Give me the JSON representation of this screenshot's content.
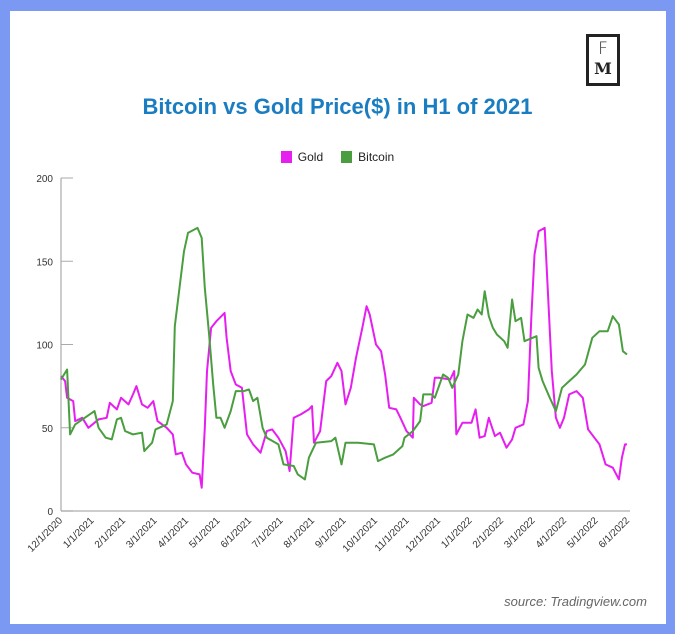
{
  "logo": {
    "text_top": "F",
    "text_bottom": "M"
  },
  "source": "source: Tradingview.com",
  "chart_data": {
    "type": "line",
    "title": "Bitcoin vs Gold Price($) in H1 of 2021",
    "xlabel": "",
    "ylabel": "",
    "ylim": [
      0,
      200
    ],
    "yticks": [
      0,
      50,
      100,
      150,
      200
    ],
    "xticks": [
      "12/1/2020",
      "1/1/2021",
      "2/1/2021",
      "3/1/2021",
      "4/1/2021",
      "5/1/2021",
      "6/1/2021",
      "7/1/2021",
      "8/1/2021",
      "9/1/2021",
      "10/1/2021",
      "11/1/2021",
      "12/1/2021",
      "1/1/2022",
      "2/1/2022",
      "3/1/2022",
      "4/1/2022",
      "5/1/2022",
      "6/1/2022"
    ],
    "xlim": [
      "2020-12-01",
      "2022-06-01"
    ],
    "grid": false,
    "legend_position": "top",
    "series": [
      {
        "name": "Gold",
        "color": "#e61ef0",
        "points": [
          [
            "2020-12-01",
            81
          ],
          [
            "2020-12-05",
            78
          ],
          [
            "2020-12-07",
            68
          ],
          [
            "2020-12-13",
            66
          ],
          [
            "2020-12-15",
            54
          ],
          [
            "2020-12-22",
            56
          ],
          [
            "2020-12-28",
            50
          ],
          [
            "2021-01-07",
            55
          ],
          [
            "2021-01-15",
            56
          ],
          [
            "2021-01-18",
            65
          ],
          [
            "2021-01-25",
            61
          ],
          [
            "2021-01-29",
            68
          ],
          [
            "2021-02-05",
            64
          ],
          [
            "2021-02-09",
            70
          ],
          [
            "2021-02-12",
            75
          ],
          [
            "2021-02-17",
            64
          ],
          [
            "2021-02-22",
            62
          ],
          [
            "2021-02-27",
            66
          ],
          [
            "2021-03-03",
            54
          ],
          [
            "2021-03-12",
            50
          ],
          [
            "2021-03-18",
            46
          ],
          [
            "2021-03-21",
            34
          ],
          [
            "2021-03-27",
            35
          ],
          [
            "2021-03-31",
            28
          ],
          [
            "2021-04-06",
            23
          ],
          [
            "2021-04-13",
            22
          ],
          [
            "2021-04-15",
            14
          ],
          [
            "2021-04-18",
            50
          ],
          [
            "2021-04-20",
            84
          ],
          [
            "2021-04-24",
            110
          ],
          [
            "2021-04-29",
            114
          ],
          [
            "2021-05-07",
            119
          ],
          [
            "2021-05-09",
            104
          ],
          [
            "2021-05-13",
            84
          ],
          [
            "2021-05-18",
            76
          ],
          [
            "2021-05-24",
            74
          ],
          [
            "2021-05-29",
            46
          ],
          [
            "2021-06-04",
            40
          ],
          [
            "2021-06-11",
            35
          ],
          [
            "2021-06-17",
            48
          ],
          [
            "2021-06-22",
            49
          ],
          [
            "2021-06-28",
            44
          ],
          [
            "2021-07-05",
            36
          ],
          [
            "2021-07-09",
            24
          ],
          [
            "2021-07-13",
            56
          ],
          [
            "2021-07-20",
            58
          ],
          [
            "2021-07-28",
            61
          ],
          [
            "2021-07-31",
            63
          ],
          [
            "2021-08-02",
            41
          ],
          [
            "2021-08-08",
            48
          ],
          [
            "2021-08-14",
            78
          ],
          [
            "2021-08-19",
            81
          ],
          [
            "2021-08-25",
            89
          ],
          [
            "2021-08-29",
            84
          ],
          [
            "2021-09-02",
            64
          ],
          [
            "2021-09-07",
            74
          ],
          [
            "2021-09-12",
            92
          ],
          [
            "2021-09-18",
            110
          ],
          [
            "2021-09-22",
            123
          ],
          [
            "2021-09-25",
            118
          ],
          [
            "2021-10-01",
            100
          ],
          [
            "2021-10-06",
            96
          ],
          [
            "2021-10-10",
            82
          ],
          [
            "2021-10-14",
            62
          ],
          [
            "2021-10-21",
            61
          ],
          [
            "2021-10-25",
            56
          ],
          [
            "2021-10-31",
            48
          ],
          [
            "2021-11-06",
            44
          ],
          [
            "2021-11-07",
            68
          ],
          [
            "2021-11-13",
            64
          ],
          [
            "2021-11-16",
            63
          ],
          [
            "2021-11-24",
            65
          ],
          [
            "2021-11-27",
            80
          ],
          [
            "2021-12-01",
            80
          ],
          [
            "2021-12-12",
            79
          ],
          [
            "2021-12-16",
            84
          ],
          [
            "2021-12-18",
            46
          ],
          [
            "2021-12-24",
            53
          ],
          [
            "2022-01-02",
            53
          ],
          [
            "2022-01-06",
            61
          ],
          [
            "2022-01-10",
            44
          ],
          [
            "2022-01-15",
            45
          ],
          [
            "2022-01-19",
            56
          ],
          [
            "2022-01-25",
            45
          ],
          [
            "2022-01-30",
            47
          ],
          [
            "2022-02-05",
            38
          ],
          [
            "2022-02-10",
            43
          ],
          [
            "2022-02-13",
            50
          ],
          [
            "2022-02-20",
            52
          ],
          [
            "2022-02-24",
            66
          ],
          [
            "2022-02-27",
            116
          ],
          [
            "2022-03-02",
            154
          ],
          [
            "2022-03-06",
            168
          ],
          [
            "2022-03-12",
            170
          ],
          [
            "2022-03-15",
            134
          ],
          [
            "2022-03-19",
            84
          ],
          [
            "2022-03-23",
            56
          ],
          [
            "2022-03-27",
            50
          ],
          [
            "2022-03-31",
            56
          ],
          [
            "2022-04-05",
            70
          ],
          [
            "2022-04-12",
            72
          ],
          [
            "2022-04-18",
            68
          ],
          [
            "2022-04-23",
            49
          ],
          [
            "2022-04-29",
            44
          ],
          [
            "2022-05-04",
            40
          ],
          [
            "2022-05-10",
            28
          ],
          [
            "2022-05-17",
            26
          ],
          [
            "2022-05-23",
            19
          ],
          [
            "2022-05-26",
            32
          ],
          [
            "2022-05-29",
            40
          ],
          [
            "2022-05-31",
            40
          ]
        ]
      },
      {
        "name": "Bitcoin",
        "color": "#4a9e3f",
        "points": [
          [
            "2020-12-01",
            79
          ],
          [
            "2020-12-07",
            85
          ],
          [
            "2020-12-10",
            46
          ],
          [
            "2020-12-15",
            52
          ],
          [
            "2021-01-03",
            60
          ],
          [
            "2021-01-07",
            50
          ],
          [
            "2021-01-14",
            44
          ],
          [
            "2021-01-20",
            43
          ],
          [
            "2021-01-25",
            55
          ],
          [
            "2021-01-29",
            56
          ],
          [
            "2021-02-02",
            48
          ],
          [
            "2021-02-09",
            46
          ],
          [
            "2021-02-17",
            47
          ],
          [
            "2021-02-19",
            36
          ],
          [
            "2021-02-26",
            41
          ],
          [
            "2021-03-01",
            49
          ],
          [
            "2021-03-12",
            52
          ],
          [
            "2021-03-18",
            66
          ],
          [
            "2021-03-20",
            111
          ],
          [
            "2021-03-25",
            136
          ],
          [
            "2021-03-29",
            156
          ],
          [
            "2021-04-02",
            167
          ],
          [
            "2021-04-11",
            170
          ],
          [
            "2021-04-15",
            164
          ],
          [
            "2021-04-18",
            134
          ],
          [
            "2021-04-22",
            106
          ],
          [
            "2021-04-26",
            76
          ],
          [
            "2021-04-29",
            56
          ],
          [
            "2021-05-03",
            56
          ],
          [
            "2021-05-07",
            50
          ],
          [
            "2021-05-13",
            60
          ],
          [
            "2021-05-18",
            72
          ],
          [
            "2021-05-26",
            72
          ],
          [
            "2021-05-31",
            73
          ],
          [
            "2021-06-04",
            66
          ],
          [
            "2021-06-08",
            68
          ],
          [
            "2021-06-13",
            50
          ],
          [
            "2021-06-17",
            44
          ],
          [
            "2021-06-28",
            40
          ],
          [
            "2021-07-03",
            28
          ],
          [
            "2021-07-13",
            27
          ],
          [
            "2021-07-17",
            22
          ],
          [
            "2021-07-24",
            19
          ],
          [
            "2021-07-28",
            32
          ],
          [
            "2021-07-31",
            36
          ],
          [
            "2021-08-04",
            41
          ],
          [
            "2021-08-19",
            42
          ],
          [
            "2021-08-23",
            44
          ],
          [
            "2021-08-29",
            28
          ],
          [
            "2021-09-02",
            41
          ],
          [
            "2021-09-14",
            41
          ],
          [
            "2021-09-29",
            40
          ],
          [
            "2021-10-03",
            30
          ],
          [
            "2021-10-10",
            32
          ],
          [
            "2021-10-18",
            34
          ],
          [
            "2021-10-27",
            39
          ],
          [
            "2021-10-29",
            44
          ],
          [
            "2021-11-06",
            48
          ],
          [
            "2021-11-13",
            54
          ],
          [
            "2021-11-16",
            70
          ],
          [
            "2021-11-24",
            70
          ],
          [
            "2021-11-27",
            68
          ],
          [
            "2021-12-05",
            82
          ],
          [
            "2021-12-10",
            80
          ],
          [
            "2021-12-14",
            74
          ],
          [
            "2021-12-20",
            82
          ],
          [
            "2021-12-24",
            102
          ],
          [
            "2021-12-29",
            118
          ],
          [
            "2022-01-04",
            116
          ],
          [
            "2022-01-08",
            121
          ],
          [
            "2022-01-12",
            118
          ],
          [
            "2022-01-15",
            132
          ],
          [
            "2022-01-19",
            117
          ],
          [
            "2022-01-23",
            110
          ],
          [
            "2022-01-27",
            106
          ],
          [
            "2022-02-03",
            102
          ],
          [
            "2022-02-06",
            98
          ],
          [
            "2022-02-10",
            127
          ],
          [
            "2022-02-13",
            114
          ],
          [
            "2022-02-18",
            116
          ],
          [
            "2022-02-21",
            102
          ],
          [
            "2022-03-04",
            105
          ],
          [
            "2022-03-06",
            86
          ],
          [
            "2022-03-10",
            78
          ],
          [
            "2022-03-17",
            68
          ],
          [
            "2022-03-23",
            60
          ],
          [
            "2022-03-29",
            74
          ],
          [
            "2022-04-05",
            78
          ],
          [
            "2022-04-12",
            82
          ],
          [
            "2022-04-20",
            88
          ],
          [
            "2022-04-27",
            104
          ],
          [
            "2022-05-04",
            108
          ],
          [
            "2022-05-12",
            108
          ],
          [
            "2022-05-17",
            117
          ],
          [
            "2022-05-23",
            112
          ],
          [
            "2022-05-27",
            96
          ],
          [
            "2022-05-31",
            94
          ]
        ]
      }
    ]
  }
}
